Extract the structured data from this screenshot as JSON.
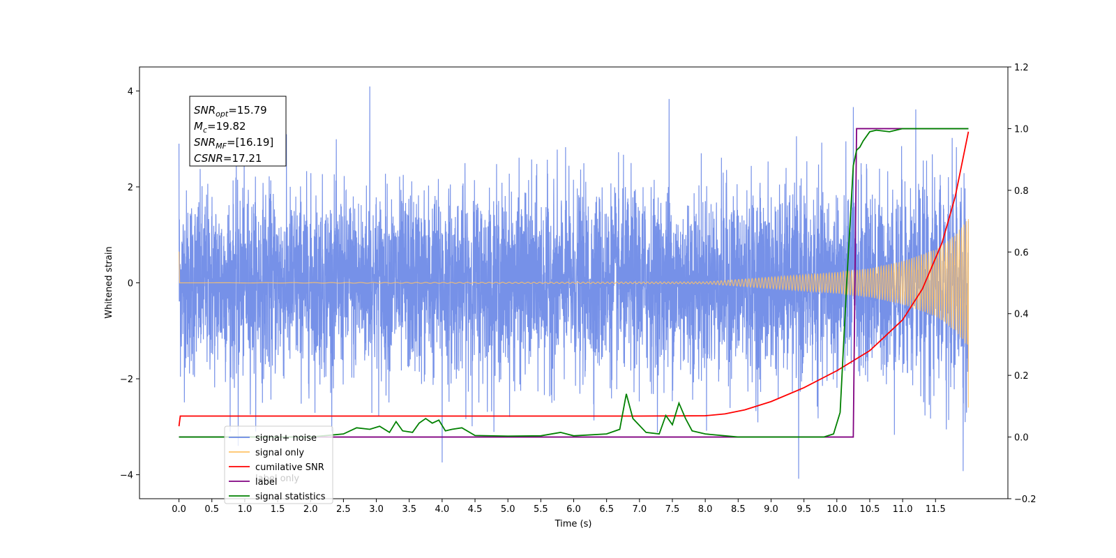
{
  "chart_data": {
    "type": "line",
    "title": "",
    "xlabel": "Time (s)",
    "ylabel": "Whitened strain",
    "ylabel_right": "",
    "xlim": [
      -0.6,
      12.6
    ],
    "ylim": [
      -4.5,
      4.5
    ],
    "ylim_right": [
      -0.2,
      1.2
    ],
    "x_ticks": [
      "0.0",
      "0.5",
      "1.0",
      "1.5",
      "2.0",
      "2.5",
      "3.0",
      "3.5",
      "4.0",
      "4.5",
      "5.0",
      "5.5",
      "6.0",
      "6.5",
      "7.0",
      "7.5",
      "8.0",
      "8.5",
      "9.0",
      "9.5",
      "10.0",
      "10.5",
      "11.0",
      "11.5"
    ],
    "y_ticks": [
      "−4",
      "−2",
      "0",
      "2",
      "4"
    ],
    "y_ticks_right": [
      "−0.2",
      "0.0",
      "0.2",
      "0.4",
      "0.6",
      "0.8",
      "1.0",
      "1.2"
    ],
    "grid": false,
    "legend_placement": "lower-left",
    "legend": [
      {
        "label": "signal+ noise",
        "color": "#6a88e6"
      },
      {
        "label": "signal only",
        "color": "#ffc266"
      },
      {
        "label": "cumilative SNR",
        "color": "#ff0000"
      },
      {
        "label": "label",
        "color": "#800080"
      },
      {
        "label": "signal statistics",
        "color": "#008000"
      }
    ],
    "hidden_legend_text": "label only",
    "annotation": {
      "lines": [
        {
          "base": "SNR",
          "sub": "opt",
          "value": "=15.79"
        },
        {
          "base": "M",
          "sub": "c",
          "value": "=19.82"
        },
        {
          "base": "SNR",
          "sub": "MF",
          "value": "=[16.19]"
        },
        {
          "base": "CSNR",
          "sub": "",
          "value": "=17.21"
        }
      ]
    },
    "series": [
      {
        "name": "signal+ noise",
        "axis": "left",
        "color": "#6a88e6",
        "description_x_range": [
          0.0,
          12.0
        ],
        "noise_band": [
          -2.0,
          2.0
        ],
        "peaks": [
          [
            0.0,
            2.9
          ],
          [
            2.9,
            4.1
          ],
          [
            0.9,
            -3.4
          ],
          [
            4.0,
            -3.75
          ],
          [
            9.42,
            -4.08
          ],
          [
            11.95,
            -3.9
          ],
          [
            11.7,
            -3.6
          ],
          [
            10.25,
            3.65
          ],
          [
            11.2,
            3.7
          ],
          [
            7.45,
            3.85
          ]
        ]
      },
      {
        "name": "signal only",
        "axis": "left",
        "color": "#ffc266",
        "x_range": [
          0.0,
          12.0
        ],
        "envelope": [
          [
            0.0,
            0.0
          ],
          [
            8.0,
            0.02
          ],
          [
            9.0,
            0.12
          ],
          [
            10.0,
            0.22
          ],
          [
            10.5,
            0.3
          ],
          [
            11.0,
            0.45
          ],
          [
            11.5,
            0.7
          ],
          [
            11.8,
            1.0
          ],
          [
            12.0,
            1.35
          ]
        ]
      },
      {
        "name": "cumilative SNR",
        "axis": "right",
        "color": "#ff0000",
        "x": [
          0.0,
          0.02,
          1.0,
          3.0,
          5.0,
          7.0,
          8.0,
          8.3,
          8.6,
          9.0,
          9.5,
          10.0,
          10.5,
          11.0,
          11.3,
          11.6,
          11.8,
          12.0
        ],
        "values": [
          0.035,
          0.068,
          0.068,
          0.068,
          0.068,
          0.068,
          0.069,
          0.075,
          0.088,
          0.115,
          0.16,
          0.215,
          0.28,
          0.38,
          0.48,
          0.63,
          0.78,
          0.99
        ]
      },
      {
        "name": "label",
        "axis": "right",
        "color": "#800080",
        "x": [
          0.0,
          10.25,
          10.3,
          11.2,
          12.0
        ],
        "values": [
          0.0,
          0.0,
          1.0,
          1.0,
          1.0
        ]
      },
      {
        "name": "signal statistics",
        "axis": "right",
        "color": "#008000",
        "x": [
          0.0,
          0.5,
          1.0,
          2.0,
          2.5,
          2.7,
          2.9,
          3.05,
          3.2,
          3.3,
          3.4,
          3.55,
          3.65,
          3.75,
          3.85,
          3.95,
          4.05,
          4.15,
          4.3,
          4.5,
          5.0,
          5.5,
          5.8,
          6.0,
          6.5,
          6.7,
          6.8,
          6.9,
          7.1,
          7.3,
          7.4,
          7.5,
          7.6,
          7.7,
          7.8,
          8.0,
          8.5,
          9.0,
          9.5,
          9.8,
          9.95,
          10.05,
          10.15,
          10.25,
          10.3,
          10.35,
          10.4,
          10.5,
          10.6,
          10.8,
          11.0,
          11.5,
          12.0
        ],
        "values": [
          0.0,
          0.0,
          0.0,
          0.0,
          0.01,
          0.03,
          0.025,
          0.035,
          0.015,
          0.05,
          0.02,
          0.015,
          0.045,
          0.06,
          0.045,
          0.055,
          0.02,
          0.025,
          0.03,
          0.005,
          0.003,
          0.004,
          0.015,
          0.004,
          0.01,
          0.025,
          0.14,
          0.06,
          0.015,
          0.01,
          0.07,
          0.04,
          0.11,
          0.06,
          0.02,
          0.01,
          0.0,
          0.0,
          0.0,
          0.0,
          0.01,
          0.08,
          0.5,
          0.88,
          0.93,
          0.94,
          0.96,
          0.99,
          0.995,
          0.99,
          1.0,
          1.0,
          1.0
        ]
      }
    ]
  }
}
